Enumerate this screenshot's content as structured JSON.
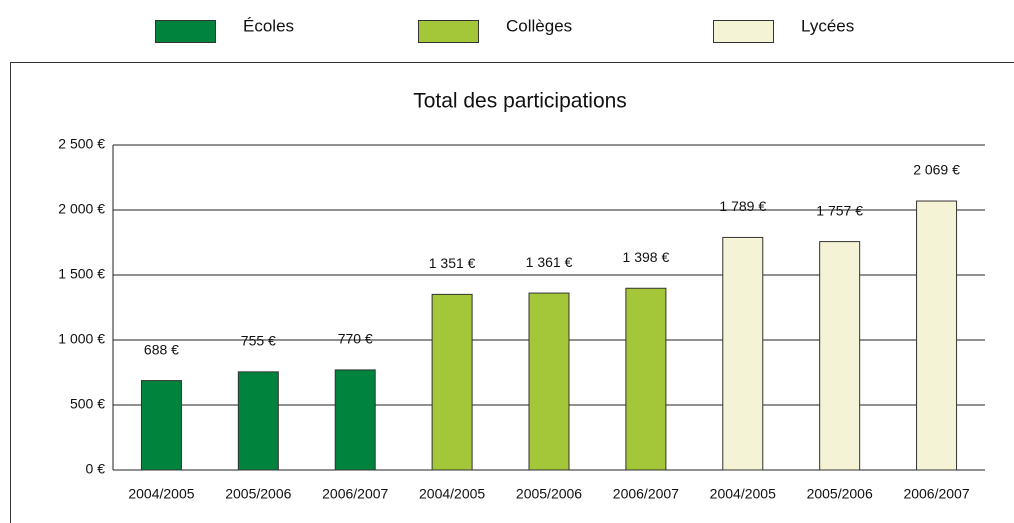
{
  "chart_data": {
    "type": "bar",
    "title": "Total des participations",
    "categories": [
      "2004/2005",
      "2005/2006",
      "2006/2007",
      "2004/2005",
      "2005/2006",
      "2006/2007",
      "2004/2005",
      "2005/2006",
      "2006/2007"
    ],
    "series": [
      {
        "name": "Écoles",
        "color": "#00843d",
        "values": [
          688,
          755,
          770,
          null,
          null,
          null,
          null,
          null,
          null
        ],
        "value_labels": [
          "688 €",
          "755 €",
          "770 €",
          null,
          null,
          null,
          null,
          null,
          null
        ]
      },
      {
        "name": "Collèges",
        "color": "#a4c639",
        "values": [
          null,
          null,
          null,
          1351,
          1361,
          1398,
          null,
          null,
          null
        ],
        "value_labels": [
          null,
          null,
          null,
          "1 351 €",
          "1 361 €",
          "1 398 €",
          null,
          null,
          null
        ]
      },
      {
        "name": "Lycées",
        "color": "#f5f3d6",
        "values": [
          null,
          null,
          null,
          null,
          null,
          null,
          1789,
          1757,
          2069
        ],
        "value_labels": [
          null,
          null,
          null,
          null,
          null,
          null,
          "1 789 €",
          "1 757 €",
          "2 069 €"
        ]
      }
    ],
    "ylim": [
      0,
      2500
    ],
    "yticks": [
      {
        "value": 0,
        "label": "0 €"
      },
      {
        "value": 500,
        "label": "500 €"
      },
      {
        "value": 1000,
        "label": "1 000 €"
      },
      {
        "value": 1500,
        "label": "1 500 €"
      },
      {
        "value": 2000,
        "label": "2 000 €"
      },
      {
        "value": 2500,
        "label": "2 500 €"
      }
    ],
    "grid": true,
    "legend": "top"
  }
}
